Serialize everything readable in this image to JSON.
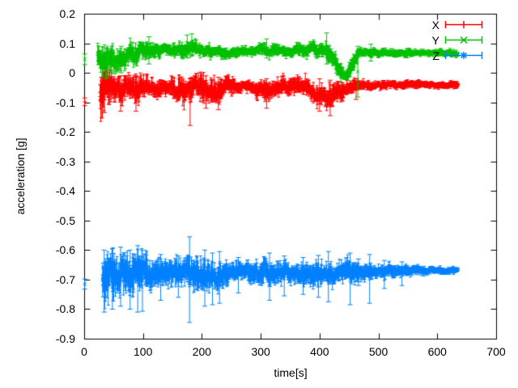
{
  "axes": {
    "x": {
      "title": "time[s]",
      "min": 0,
      "max": 700,
      "ticks": [
        {
          "v": 0,
          "label": "0"
        },
        {
          "v": 100,
          "label": "100"
        },
        {
          "v": 200,
          "label": "200"
        },
        {
          "v": 300,
          "label": "300"
        },
        {
          "v": 400,
          "label": "400"
        },
        {
          "v": 500,
          "label": "500"
        },
        {
          "v": 600,
          "label": "600"
        },
        {
          "v": 700,
          "label": "700"
        }
      ]
    },
    "y": {
      "title": "acceleration [g]",
      "min": -0.9,
      "max": 0.2,
      "ticks": [
        {
          "v": 0.2,
          "label": "0.2"
        },
        {
          "v": 0.1,
          "label": "0.1"
        },
        {
          "v": 0,
          "label": "0"
        },
        {
          "v": -0.1,
          "label": "-0.1"
        },
        {
          "v": -0.2,
          "label": "-0.2"
        },
        {
          "v": -0.3,
          "label": "-0.3"
        },
        {
          "v": -0.4,
          "label": "-0.4"
        },
        {
          "v": -0.5,
          "label": "-0.5"
        },
        {
          "v": -0.6,
          "label": "-0.6"
        },
        {
          "v": -0.7,
          "label": "-0.7"
        },
        {
          "v": -0.8,
          "label": "-0.8"
        },
        {
          "v": -0.9,
          "label": "-0.9"
        }
      ]
    }
  },
  "legend": {
    "entries": [
      {
        "label": "X",
        "color": "#ff0000",
        "marker": "plus"
      },
      {
        "label": "Y",
        "color": "#00c000",
        "marker": "cross"
      },
      {
        "label": "Z",
        "color": "#0080ff",
        "marker": "asterisk"
      }
    ]
  },
  "colors": {
    "background": "#ffffff",
    "axis": "#000000",
    "text": "#000000"
  },
  "chart_data": {
    "type": "scatter",
    "style": "errorbars",
    "title": "",
    "xlabel": "time[s]",
    "ylabel": "acceleration [g]",
    "xlim": [
      0,
      700
    ],
    "ylim": [
      -0.9,
      0.2
    ],
    "grid": false,
    "legend_position": "top-right-inside",
    "band_format": "control points [t, mean_value, band_halfwidth] of dense noisy errorbar stream",
    "outlier_format": "long error bars [t, y_low, y_high]",
    "series": [
      {
        "name": "X",
        "color": "#ff0000",
        "marker": "plus",
        "t_start": 27,
        "t_end": 635,
        "start_point": {
          "t": 1,
          "y": -0.098,
          "err": 0.013
        },
        "band": [
          [
            27,
            -0.06,
            0.07
          ],
          [
            35,
            -0.055,
            0.06
          ],
          [
            45,
            -0.05,
            0.045
          ],
          [
            60,
            -0.065,
            0.045
          ],
          [
            75,
            -0.05,
            0.035
          ],
          [
            90,
            -0.06,
            0.045
          ],
          [
            105,
            -0.05,
            0.03
          ],
          [
            125,
            -0.048,
            0.025
          ],
          [
            150,
            -0.05,
            0.03
          ],
          [
            172,
            -0.055,
            0.04
          ],
          [
            185,
            -0.05,
            0.035
          ],
          [
            205,
            -0.055,
            0.04
          ],
          [
            225,
            -0.06,
            0.04
          ],
          [
            245,
            -0.05,
            0.03
          ],
          [
            265,
            -0.045,
            0.018
          ],
          [
            285,
            -0.048,
            0.018
          ],
          [
            305,
            -0.065,
            0.03
          ],
          [
            320,
            -0.055,
            0.028
          ],
          [
            340,
            -0.045,
            0.025
          ],
          [
            360,
            -0.04,
            0.025
          ],
          [
            380,
            -0.05,
            0.028
          ],
          [
            397,
            -0.07,
            0.032
          ],
          [
            415,
            -0.075,
            0.035
          ],
          [
            430,
            -0.065,
            0.032
          ],
          [
            445,
            -0.05,
            0.025
          ],
          [
            460,
            -0.046,
            0.02
          ],
          [
            475,
            -0.044,
            0.015
          ],
          [
            500,
            -0.042,
            0.012
          ],
          [
            540,
            -0.04,
            0.011
          ],
          [
            580,
            -0.04,
            0.01
          ],
          [
            635,
            -0.04,
            0.01
          ]
        ],
        "outliers": [
          [
            34,
            -0.135,
            -0.005
          ],
          [
            62,
            -0.13,
            -0.01
          ],
          [
            88,
            -0.13,
            -0.015
          ],
          [
            180,
            -0.178,
            -0.02
          ],
          [
            207,
            -0.12,
            -0.01
          ],
          [
            228,
            -0.125,
            -0.015
          ],
          [
            310,
            -0.12,
            -0.02
          ],
          [
            400,
            -0.13,
            -0.02
          ],
          [
            418,
            -0.145,
            -0.025
          ],
          [
            462,
            -0.09,
            -0.02
          ]
        ]
      },
      {
        "name": "Y",
        "color": "#00c000",
        "marker": "cross",
        "t_start": 23,
        "t_end": 635,
        "start_point": {
          "t": 1,
          "y": 0.046,
          "err": 0.018
        },
        "band": [
          [
            23,
            0.06,
            0.045
          ],
          [
            33,
            0.05,
            0.05
          ],
          [
            42,
            0.055,
            0.045
          ],
          [
            55,
            0.05,
            0.04
          ],
          [
            68,
            0.06,
            0.035
          ],
          [
            82,
            0.068,
            0.03
          ],
          [
            100,
            0.072,
            0.025
          ],
          [
            125,
            0.078,
            0.022
          ],
          [
            150,
            0.075,
            0.02
          ],
          [
            168,
            0.078,
            0.022
          ],
          [
            182,
            0.088,
            0.022
          ],
          [
            195,
            0.078,
            0.02
          ],
          [
            215,
            0.072,
            0.018
          ],
          [
            240,
            0.07,
            0.016
          ],
          [
            265,
            0.07,
            0.015
          ],
          [
            288,
            0.072,
            0.016
          ],
          [
            303,
            0.082,
            0.018
          ],
          [
            318,
            0.074,
            0.016
          ],
          [
            340,
            0.073,
            0.016
          ],
          [
            362,
            0.076,
            0.018
          ],
          [
            385,
            0.08,
            0.02
          ],
          [
            405,
            0.076,
            0.02
          ],
          [
            420,
            0.062,
            0.025
          ],
          [
            428,
            0.032,
            0.03
          ],
          [
            436,
            0.002,
            0.025
          ],
          [
            444,
            -0.01,
            0.02
          ],
          [
            452,
            0.0,
            0.024
          ],
          [
            458,
            0.034,
            0.025
          ],
          [
            465,
            0.06,
            0.02
          ],
          [
            473,
            0.068,
            0.014
          ],
          [
            490,
            0.068,
            0.012
          ],
          [
            530,
            0.068,
            0.011
          ],
          [
            570,
            0.067,
            0.01
          ],
          [
            635,
            0.067,
            0.01
          ]
        ],
        "outliers": [
          [
            37,
            -0.02,
            0.06
          ],
          [
            63,
            0.0,
            0.09
          ],
          [
            110,
            0.03,
            0.122
          ],
          [
            175,
            0.05,
            0.128
          ],
          [
            183,
            0.06,
            0.132
          ],
          [
            310,
            0.05,
            0.115
          ],
          [
            412,
            0.03,
            0.135
          ],
          [
            465,
            -0.082,
            0.09
          ],
          [
            487,
            0.04,
            0.097
          ]
        ]
      },
      {
        "name": "Z",
        "color": "#0080ff",
        "marker": "asterisk",
        "t_start": 31,
        "t_end": 635,
        "start_point": {
          "t": 1,
          "y": -0.715,
          "err": 0.017
        },
        "band": [
          [
            31,
            -0.677,
            0.068
          ],
          [
            45,
            -0.68,
            0.072
          ],
          [
            60,
            -0.682,
            0.07
          ],
          [
            75,
            -0.68,
            0.065
          ],
          [
            95,
            -0.68,
            0.06
          ],
          [
            115,
            -0.68,
            0.05
          ],
          [
            135,
            -0.678,
            0.042
          ],
          [
            155,
            -0.676,
            0.04
          ],
          [
            172,
            -0.68,
            0.045
          ],
          [
            185,
            -0.682,
            0.05
          ],
          [
            200,
            -0.68,
            0.048
          ],
          [
            215,
            -0.68,
            0.045
          ],
          [
            235,
            -0.678,
            0.04
          ],
          [
            255,
            -0.675,
            0.03
          ],
          [
            272,
            -0.672,
            0.026
          ],
          [
            290,
            -0.678,
            0.036
          ],
          [
            308,
            -0.68,
            0.04
          ],
          [
            325,
            -0.678,
            0.034
          ],
          [
            345,
            -0.675,
            0.033
          ],
          [
            365,
            -0.677,
            0.03
          ],
          [
            385,
            -0.678,
            0.032
          ],
          [
            405,
            -0.68,
            0.036
          ],
          [
            425,
            -0.677,
            0.032
          ],
          [
            445,
            -0.678,
            0.036
          ],
          [
            465,
            -0.675,
            0.028
          ],
          [
            485,
            -0.673,
            0.024
          ],
          [
            505,
            -0.672,
            0.02
          ],
          [
            530,
            -0.671,
            0.017
          ],
          [
            555,
            -0.67,
            0.014
          ],
          [
            580,
            -0.67,
            0.012
          ],
          [
            605,
            -0.669,
            0.01
          ],
          [
            635,
            -0.669,
            0.009
          ]
        ],
        "outliers": [
          [
            34,
            -0.81,
            -0.6
          ],
          [
            48,
            -0.8,
            -0.595
          ],
          [
            62,
            -0.79,
            -0.59
          ],
          [
            78,
            -0.8,
            -0.6
          ],
          [
            91,
            -0.81,
            -0.585
          ],
          [
            99,
            -0.807,
            -0.6
          ],
          [
            130,
            -0.77,
            -0.615
          ],
          [
            160,
            -0.76,
            -0.62
          ],
          [
            179,
            -0.845,
            -0.555
          ],
          [
            205,
            -0.79,
            -0.6
          ],
          [
            218,
            -0.785,
            -0.61
          ],
          [
            230,
            -0.78,
            -0.605
          ],
          [
            262,
            -0.745,
            -0.625
          ],
          [
            315,
            -0.77,
            -0.61
          ],
          [
            340,
            -0.755,
            -0.62
          ],
          [
            372,
            -0.75,
            -0.625
          ],
          [
            398,
            -0.76,
            -0.618
          ],
          [
            415,
            -0.775,
            -0.605
          ],
          [
            452,
            -0.785,
            -0.61
          ],
          [
            466,
            -0.72,
            -0.63
          ],
          [
            485,
            -0.78,
            -0.615
          ],
          [
            510,
            -0.73,
            -0.635
          ],
          [
            540,
            -0.72,
            -0.64
          ]
        ]
      }
    ]
  }
}
